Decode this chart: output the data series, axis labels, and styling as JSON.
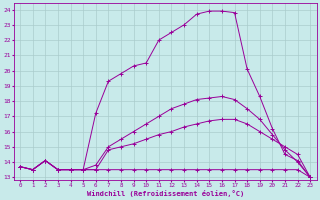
{
  "xlabel": "Windchill (Refroidissement éolien,°C)",
  "bg_color": "#c8eaea",
  "line_color": "#990099",
  "grid_color": "#aacccc",
  "ylim": [
    12.8,
    24.4
  ],
  "xlim": [
    -0.5,
    23.5
  ],
  "yticks": [
    13,
    14,
    15,
    16,
    17,
    18,
    19,
    20,
    21,
    22,
    23,
    24
  ],
  "xticks": [
    0,
    1,
    2,
    3,
    4,
    5,
    6,
    7,
    8,
    9,
    10,
    11,
    12,
    13,
    14,
    15,
    16,
    17,
    18,
    19,
    20,
    21,
    22,
    23
  ],
  "series": [
    {
      "x": [
        0,
        1,
        2,
        3,
        4,
        5,
        6,
        7,
        8,
        9,
        10,
        11,
        12,
        13,
        14,
        15,
        16,
        17,
        18,
        19,
        20,
        21,
        22,
        23
      ],
      "y": [
        13.7,
        13.5,
        14.1,
        13.5,
        13.5,
        13.5,
        13.5,
        13.5,
        13.5,
        13.5,
        13.5,
        13.5,
        13.5,
        13.5,
        13.5,
        13.5,
        13.5,
        13.5,
        13.5,
        13.5,
        13.5,
        13.5,
        13.5,
        13.0
      ]
    },
    {
      "x": [
        0,
        1,
        2,
        3,
        4,
        5,
        6,
        7,
        8,
        9,
        10,
        11,
        12,
        13,
        14,
        15,
        16,
        17,
        18,
        19,
        20,
        21,
        22,
        23
      ],
      "y": [
        13.7,
        13.5,
        14.1,
        13.5,
        13.5,
        13.5,
        13.5,
        14.8,
        15.0,
        15.2,
        15.5,
        15.8,
        16.0,
        16.3,
        16.5,
        16.7,
        16.8,
        16.8,
        16.5,
        16.0,
        15.5,
        15.0,
        14.5,
        13.0
      ]
    },
    {
      "x": [
        0,
        1,
        2,
        3,
        4,
        5,
        6,
        7,
        8,
        9,
        10,
        11,
        12,
        13,
        14,
        15,
        16,
        17,
        18,
        19,
        20,
        21,
        22,
        23
      ],
      "y": [
        13.7,
        13.5,
        14.1,
        13.5,
        13.5,
        13.5,
        13.8,
        15.0,
        15.5,
        16.0,
        16.5,
        17.0,
        17.5,
        17.8,
        18.1,
        18.2,
        18.3,
        18.1,
        17.5,
        16.8,
        15.8,
        14.8,
        14.0,
        13.0
      ]
    },
    {
      "x": [
        0,
        1,
        2,
        3,
        4,
        5,
        6,
        7,
        8,
        9,
        10,
        11,
        12,
        13,
        14,
        15,
        16,
        17,
        18,
        19,
        20,
        21,
        22,
        23
      ],
      "y": [
        13.7,
        13.5,
        14.1,
        13.5,
        13.5,
        13.5,
        17.2,
        19.3,
        19.8,
        20.3,
        20.5,
        22.0,
        22.5,
        23.0,
        23.7,
        23.9,
        23.9,
        23.8,
        20.1,
        18.3,
        16.2,
        14.5,
        14.1,
        13.0
      ]
    }
  ]
}
